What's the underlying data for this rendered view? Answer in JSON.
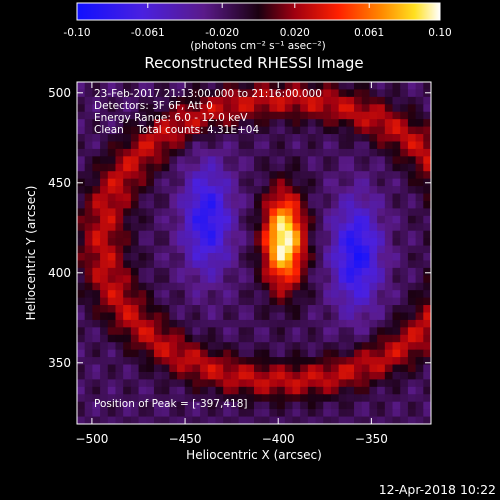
{
  "chart_data": {
    "type": "heatmap",
    "colormap": "hot-diverging (blue-purple-red-orange-yellow-white)",
    "colorbar": {
      "min": -0.1,
      "max": 0.1,
      "ticks": [
        "-0.10",
        "-0.061",
        "-0.020",
        "0.020",
        "0.061",
        "0.10"
      ],
      "tick_values": [
        -0.1,
        -0.061,
        -0.02,
        0.02,
        0.061,
        0.1
      ],
      "units_text": "(photons cm⁻² s⁻¹ asec⁻²)"
    },
    "title": "Reconstructed RHESSI Image",
    "xlabel": "Heliocentric X (arcsec)",
    "ylabel": "Heliocentric Y (arcsec)",
    "xlim": [
      -508,
      -318
    ],
    "ylim": [
      316,
      506
    ],
    "xticks": [
      -500,
      -450,
      -400,
      -350
    ],
    "xtick_labels": [
      "−500",
      "−450",
      "−400",
      "−350"
    ],
    "yticks": [
      350,
      400,
      450,
      500
    ],
    "ytick_labels": [
      "350",
      "400",
      "450",
      "500"
    ],
    "annotations": [
      "23-Feb-2017 21:13:00.000 to 21:16:00.000",
      "Detectors: 3F 6F, Att 0",
      "Energy Range: 6.0 - 12.0 keV",
      "Clean    Total counts: 4.31E+04"
    ],
    "peak_label": "Position of Peak = [-397,418]",
    "peak": {
      "x": -397,
      "y": 418,
      "value": 0.1
    },
    "features": [
      {
        "kind": "positive source",
        "x": -397,
        "y": 418,
        "value": 0.1
      },
      {
        "kind": "negative lobe",
        "x": -438,
        "y": 430,
        "value": -0.085
      },
      {
        "kind": "negative lobe",
        "x": -358,
        "y": 410,
        "value": -0.09
      },
      {
        "kind": "positive ring",
        "x_center": -397,
        "y_center": 418,
        "value": 0.045
      }
    ],
    "grid": false
  },
  "footer": {
    "timestamp": "12-Apr-2018 10:22"
  }
}
